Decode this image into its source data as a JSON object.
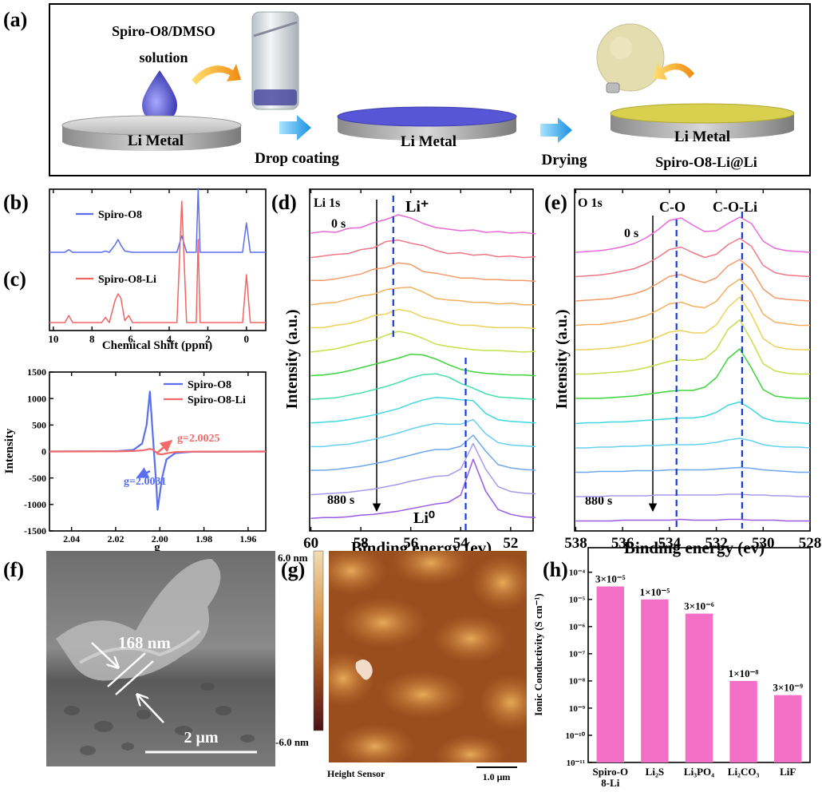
{
  "panel_labels": [
    "(a)",
    "(b)",
    "(c)",
    "(d)",
    "(e)",
    "(f)",
    "(g)",
    "(h)"
  ],
  "scheme": {
    "solution_line1": "Spiro-O8/DMSO",
    "solution_line2": "solution",
    "substrates": [
      "Li Metal",
      "Li Metal",
      "Li Metal"
    ],
    "steps": [
      "Drop coating",
      "Drying"
    ],
    "product": "Spiro-O8-Li@Li"
  },
  "chart_data": [
    {
      "type": "line",
      "stacked": true,
      "x_label": "Chemical Shift (ppm)",
      "x": [
        10.2,
        9.4,
        9.2,
        9.0,
        7.5,
        7.3,
        7.1,
        6.8,
        6.65,
        6.5,
        6.3,
        6.1,
        5.9,
        3.6,
        3.35,
        3.1,
        2.6,
        2.5,
        2.4,
        0.2,
        0,
        -0.2,
        -1
      ],
      "series": [
        {
          "name": "Spiro-O8",
          "color": "#5b6ef0",
          "values": [
            0,
            0,
            0.4,
            0,
            0,
            0.2,
            0,
            1.2,
            2,
            1.1,
            0.2,
            0.1,
            0,
            0,
            2.6,
            0,
            0,
            10,
            0,
            0,
            4.6,
            0,
            0
          ]
        },
        {
          "name": "Spiro-O8-Li",
          "color": "#f06464",
          "values": [
            0,
            0,
            1.1,
            0,
            0,
            0.8,
            0,
            3.5,
            4.5,
            3.8,
            0.3,
            1.1,
            0,
            0,
            19,
            0,
            0,
            13,
            0,
            0,
            7.5,
            0,
            0
          ]
        }
      ],
      "xlim": [
        10.2,
        -1
      ],
      "xticks": [
        10,
        8,
        6,
        4,
        2,
        0
      ]
    },
    {
      "type": "line",
      "x_label": "g",
      "y_label": "Intensity",
      "x": [
        2.05,
        2.02,
        2.012,
        2.008,
        2.006,
        2.0045,
        2.003,
        2.0015,
        2.001,
        1.999,
        1.997,
        1.993,
        1.985,
        1.952
      ],
      "series": [
        {
          "name": "Spiro-O8",
          "color": "#5a6ff0",
          "values": [
            0,
            5,
            30,
            150,
            500,
            1130,
            200,
            -700,
            -1100,
            -500,
            -150,
            -30,
            -5,
            0
          ]
        },
        {
          "name": "Spiro-O8-Li",
          "color": "#f26a6a",
          "values": [
            0,
            2,
            10,
            20,
            35,
            50,
            30,
            -20,
            -45,
            -55,
            -35,
            -10,
            -3,
            0
          ]
        }
      ],
      "annotations": [
        "g=2.0031",
        "g=2.0025"
      ],
      "xlim": [
        2.05,
        1.952
      ],
      "xticks": [
        2.04,
        2.02,
        {
          "value": 2.0,
          "label": "2.00"
        },
        1.98,
        1.96
      ],
      "ylim": [
        -1500,
        1500
      ],
      "yticks": [
        -1500,
        -1000,
        -500,
        0,
        500,
        1000,
        1500
      ]
    },
    {
      "type": "line",
      "stacked": true,
      "title": "Li 1s",
      "x_label": "Binding energy (ev)",
      "y_label": "Intensity (a.u.)",
      "annotations": {
        "start": "0 s",
        "end": "880 s",
        "peak_1": "Li⁺",
        "peak_2": "Li⁰"
      },
      "reference_lines": [
        56.7,
        53.8
      ],
      "x": [
        60,
        59.5,
        59,
        58.5,
        58,
        57.5,
        57,
        56.5,
        56,
        55.5,
        55,
        54.5,
        54,
        53.5,
        53,
        52.5,
        52,
        51.5,
        51
      ],
      "series": [
        {
          "color": "#e86ad8",
          "values": [
            0.3,
            0.5,
            0.4,
            0.9,
            1.0,
            1.6,
            2.0,
            2.6,
            2.2,
            1.5,
            1.0,
            0.8,
            0.6,
            0.7,
            0.4,
            0.5,
            0.3,
            0.4,
            0.2
          ]
        },
        {
          "color": "#f07888",
          "values": [
            0.2,
            0.4,
            0.6,
            0.7,
            1.2,
            1.4,
            2.2,
            2.4,
            2.0,
            1.7,
            1.1,
            0.7,
            0.8,
            0.5,
            0.6,
            0.3,
            0.4,
            0.2,
            0.3
          ]
        },
        {
          "color": "#f39a6a",
          "values": [
            0.3,
            0.3,
            0.5,
            0.8,
            1.1,
            1.7,
            1.9,
            2.5,
            2.3,
            1.4,
            1.2,
            0.9,
            0.6,
            0.6,
            0.4,
            0.4,
            0.3,
            0.3,
            0.2
          ]
        },
        {
          "color": "#f2b060",
          "values": [
            0.2,
            0.4,
            0.5,
            0.9,
            1.3,
            1.5,
            2.1,
            2.3,
            2.4,
            1.8,
            1.0,
            0.8,
            0.7,
            0.5,
            0.5,
            0.3,
            0.4,
            0.2,
            0.2
          ]
        },
        {
          "color": "#ecd25a",
          "values": [
            0.3,
            0.3,
            0.6,
            0.8,
            1.2,
            1.8,
            2.0,
            2.6,
            2.3,
            1.6,
            1.3,
            0.9,
            0.6,
            0.6,
            0.4,
            0.3,
            0.3,
            0.3,
            0.2
          ]
        },
        {
          "color": "#c4e04a",
          "values": [
            0.2,
            0.4,
            0.6,
            1.0,
            1.4,
            1.7,
            2.3,
            2.8,
            2.5,
            1.9,
            1.2,
            0.9,
            0.7,
            0.5,
            0.4,
            0.4,
            0.3,
            0.2,
            0.3
          ]
        },
        {
          "color": "#3ed43e",
          "values": [
            0.2,
            0.3,
            0.5,
            0.8,
            1.2,
            1.6,
            2.0,
            2.4,
            2.9,
            2.8,
            2.3,
            1.6,
            1.0,
            0.7,
            0.5,
            0.4,
            0.3,
            0.3,
            0.2
          ]
        },
        {
          "color": "#3fe0a8",
          "values": [
            0.2,
            0.3,
            0.4,
            0.7,
            1.0,
            1.4,
            1.8,
            2.3,
            2.9,
            3.3,
            3.4,
            3.0,
            2.2,
            1.6,
            0.9,
            0.5,
            0.4,
            0.3,
            0.2
          ]
        },
        {
          "color": "#3dd8e0",
          "values": [
            0.2,
            0.3,
            0.4,
            0.6,
            0.9,
            1.2,
            1.6,
            2.0,
            2.6,
            3.1,
            3.4,
            3.3,
            3.1,
            3.0,
            1.4,
            0.6,
            0.4,
            0.3,
            0.2
          ]
        },
        {
          "color": "#68d0f0",
          "values": [
            0.2,
            0.2,
            0.4,
            0.5,
            0.8,
            1.1,
            1.5,
            1.9,
            2.4,
            2.8,
            3.1,
            3.0,
            3.0,
            3.6,
            1.8,
            0.7,
            0.4,
            0.3,
            0.2
          ]
        },
        {
          "color": "#6ea8ec",
          "values": [
            0.2,
            0.2,
            0.3,
            0.5,
            0.7,
            1.0,
            1.3,
            1.7,
            2.1,
            2.5,
            2.8,
            2.8,
            3.2,
            4.6,
            2.6,
            0.9,
            0.5,
            0.3,
            0.2
          ]
        },
        {
          "color": "#a898ec",
          "values": [
            0.1,
            0.2,
            0.3,
            0.4,
            0.6,
            0.8,
            1.1,
            1.4,
            1.8,
            2.1,
            2.4,
            2.5,
            3.3,
            6.5,
            3.3,
            1.1,
            0.5,
            0.3,
            0.2
          ]
        },
        {
          "color": "#9a5ae6",
          "values": [
            0.1,
            0.2,
            0.2,
            0.3,
            0.5,
            0.6,
            0.8,
            1.0,
            1.3,
            1.6,
            1.9,
            2.1,
            3.0,
            7.5,
            3.5,
            1.2,
            0.6,
            0.3,
            0.2
          ]
        }
      ],
      "xlim": [
        60.05,
        51.1
      ],
      "xticks": [
        60,
        58,
        56,
        54,
        52
      ]
    },
    {
      "type": "line",
      "stacked": true,
      "title": "O 1s",
      "x_label": "Binding energy (ev)",
      "y_label": "Intensity (a.u.)",
      "annotations": {
        "start": "0 s",
        "end": "880 s",
        "peak_1": "C-O",
        "peak_2": "C-O-Li"
      },
      "reference_lines": [
        533.7,
        530.9
      ],
      "x": [
        538,
        537.5,
        537,
        536.5,
        536,
        535.5,
        535,
        534.5,
        534,
        533.5,
        533,
        532.5,
        532,
        531.5,
        531,
        530.5,
        530,
        529.5,
        529,
        528.5,
        528
      ],
      "series": [
        {
          "color": "#e86ad8",
          "values": [
            0.2,
            0.3,
            0.4,
            0.6,
            0.9,
            1.3,
            2.0,
            3.0,
            4.2,
            4.5,
            3.6,
            2.8,
            2.9,
            3.8,
            4.6,
            3.8,
            1.6,
            0.7,
            0.4,
            0.3,
            0.2
          ]
        },
        {
          "color": "#f07888",
          "values": [
            0.2,
            0.3,
            0.4,
            0.6,
            0.9,
            1.2,
            1.8,
            2.6,
            3.6,
            3.9,
            3.2,
            2.6,
            3.0,
            4.2,
            5.0,
            4.0,
            1.6,
            0.7,
            0.4,
            0.3,
            0.2
          ]
        },
        {
          "color": "#f39a6a",
          "values": [
            0.2,
            0.3,
            0.4,
            0.5,
            0.8,
            1.1,
            1.6,
            2.4,
            3.3,
            3.5,
            2.9,
            2.5,
            3.1,
            4.6,
            5.4,
            4.2,
            1.7,
            0.6,
            0.4,
            0.3,
            0.2
          ]
        },
        {
          "color": "#f2b060",
          "values": [
            0.2,
            0.3,
            0.3,
            0.5,
            0.7,
            1.0,
            1.4,
            2.1,
            2.9,
            3.1,
            2.6,
            2.4,
            3.2,
            5.0,
            6.0,
            4.4,
            1.6,
            0.6,
            0.4,
            0.2,
            0.2
          ]
        },
        {
          "color": "#ecd25a",
          "values": [
            0.2,
            0.2,
            0.3,
            0.4,
            0.6,
            0.9,
            1.2,
            1.8,
            2.4,
            2.6,
            2.3,
            2.3,
            3.3,
            5.5,
            6.8,
            4.6,
            1.6,
            0.6,
            0.3,
            0.2,
            0.2
          ]
        },
        {
          "color": "#c4e04a",
          "values": [
            0.2,
            0.2,
            0.3,
            0.4,
            0.5,
            0.7,
            1.0,
            1.4,
            1.8,
            2.0,
            1.9,
            2.1,
            3.3,
            5.8,
            7.0,
            4.4,
            1.5,
            0.6,
            0.3,
            0.2,
            0.2
          ]
        },
        {
          "color": "#3ed43e",
          "values": [
            0.2,
            0.2,
            0.2,
            0.3,
            0.4,
            0.5,
            0.7,
            0.9,
            1.1,
            1.2,
            1.2,
            1.6,
            2.8,
            5.2,
            6.4,
            4.0,
            1.3,
            0.5,
            0.3,
            0.2,
            0.2
          ]
        },
        {
          "color": "#3dd8e0",
          "values": [
            0.1,
            0.2,
            0.2,
            0.3,
            0.3,
            0.4,
            0.5,
            0.6,
            0.7,
            0.8,
            0.8,
            1.0,
            1.5,
            2.4,
            2.8,
            1.9,
            0.8,
            0.4,
            0.3,
            0.2,
            0.1
          ]
        },
        {
          "color": "#68d0f0",
          "values": [
            0.1,
            0.1,
            0.2,
            0.2,
            0.3,
            0.3,
            0.4,
            0.4,
            0.5,
            0.5,
            0.5,
            0.6,
            0.8,
            1.1,
            1.3,
            1.0,
            0.5,
            0.3,
            0.2,
            0.2,
            0.1
          ]
        },
        {
          "color": "#6ea8ec",
          "values": [
            0.1,
            0.1,
            0.2,
            0.2,
            0.2,
            0.3,
            0.3,
            0.3,
            0.4,
            0.4,
            0.4,
            0.4,
            0.5,
            0.6,
            0.7,
            0.6,
            0.4,
            0.3,
            0.2,
            0.1,
            0.1
          ]
        },
        {
          "color": "#a898ec",
          "values": [
            0.1,
            0.1,
            0.1,
            0.2,
            0.2,
            0.2,
            0.2,
            0.3,
            0.3,
            0.3,
            0.3,
            0.3,
            0.3,
            0.4,
            0.4,
            0.3,
            0.3,
            0.2,
            0.2,
            0.1,
            0.1
          ]
        },
        {
          "color": "#9a5ae6",
          "values": [
            0.1,
            0.1,
            0.1,
            0.1,
            0.2,
            0.2,
            0.2,
            0.2,
            0.2,
            0.3,
            0.2,
            0.2,
            0.2,
            0.3,
            0.3,
            0.2,
            0.2,
            0.2,
            0.1,
            0.1,
            0.1
          ]
        }
      ],
      "xlim": [
        538.05,
        528
      ],
      "xticks": [
        538,
        536,
        534,
        532,
        530,
        528
      ]
    },
    {
      "type": "bar",
      "log": true,
      "y_label": "Ionic Conductivity (S cm⁻¹)",
      "categories": [
        "Spiro-O\n8-Li",
        "Li₂S",
        "Li₃PO₄",
        "Li₂CO₃",
        "LiF"
      ],
      "values": [
        3e-05,
        1e-05,
        3e-06,
        1e-08,
        3e-09
      ],
      "value_labels": [
        "3×10⁻⁵",
        "1×10⁻⁵",
        "3×10⁻⁶",
        "1×10⁻⁸",
        "3×10⁻⁹"
      ],
      "color": "#f46fc6",
      "ylim": [
        1e-11,
        0.0008
      ],
      "yticks": [
        {
          "value": 1e-11,
          "label": "10⁻¹¹"
        },
        {
          "value": 1e-10,
          "label": "10⁻¹⁰"
        },
        {
          "value": 1e-09,
          "label": "10⁻⁹"
        },
        {
          "value": 1e-08,
          "label": "10⁻⁸"
        },
        {
          "value": 1e-07,
          "label": "10⁻⁷"
        },
        {
          "value": 1e-06,
          "label": "10⁻⁶"
        },
        {
          "value": 1e-05,
          "label": "10⁻⁵"
        },
        {
          "value": 0.0001,
          "label": "10⁻⁴"
        }
      ]
    }
  ],
  "sem": {
    "thickness_label": "168 nm",
    "scale_bar": "2 μm"
  },
  "afm": {
    "colorbar_max": "6.0 nm",
    "colorbar_min": "-6.0 nm",
    "channel": "Height Sensor",
    "scale_bar": "1.0 μm"
  }
}
